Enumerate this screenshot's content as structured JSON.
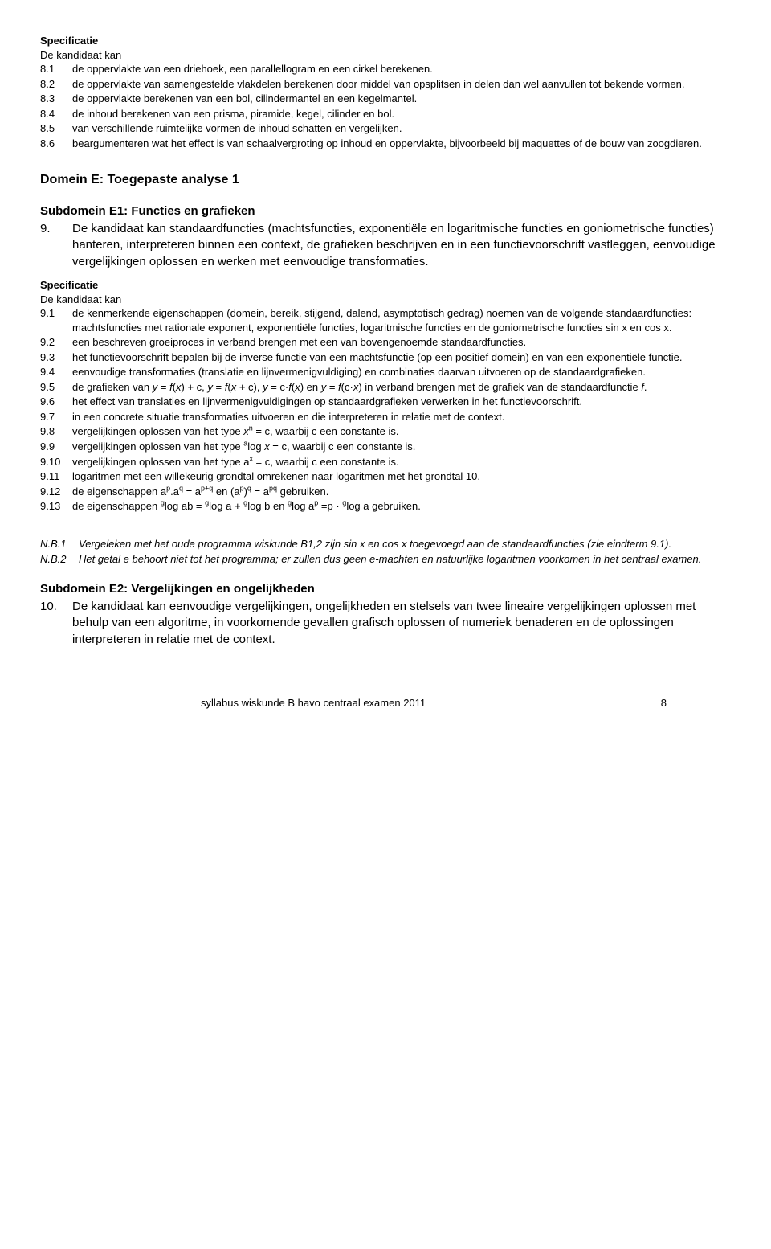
{
  "spec8": {
    "heading": "Specificatie",
    "subheading": "De kandidaat kan",
    "items": [
      {
        "n": "8.1",
        "t": "de oppervlakte van een driehoek, een parallellogram en een cirkel berekenen."
      },
      {
        "n": "8.2",
        "t": "de oppervlakte van samengestelde vlakdelen berekenen door middel van opsplitsen in delen dan wel aanvullen tot bekende vormen."
      },
      {
        "n": "8.3",
        "t": "de oppervlakte berekenen van een bol, cilindermantel en een kegelmantel."
      },
      {
        "n": "8.4",
        "t": "de inhoud berekenen van een prisma, piramide, kegel, cilinder en bol."
      },
      {
        "n": "8.5",
        "t": "van verschillende ruimtelijke vormen de inhoud schatten en vergelijken."
      },
      {
        "n": "8.6",
        "t": "beargumenteren wat het effect is van schaalvergroting op inhoud en oppervlakte, bijvoorbeeld bij maquettes of de bouw van zoogdieren."
      }
    ]
  },
  "domainE": {
    "title": "Domein E: Toegepaste analyse 1"
  },
  "subE1": {
    "title": "Subdomein E1: Functies en grafieken",
    "mainNum": "9.",
    "mainText": "De kandidaat kan standaardfuncties (machtsfuncties, exponentiële en logaritmische functies en goniometrische functies) hanteren, interpreteren binnen een context, de grafieken beschrijven en in een functievoorschrift vastleggen, eenvoudige vergelijkingen oplossen en werken met eenvoudige transformaties."
  },
  "spec9": {
    "heading": "Specificatie",
    "subheading": "De kandidaat kan",
    "items": [
      {
        "n": "9.1",
        "t": "de kenmerkende eigenschappen (domein, bereik, stijgend, dalend, asymptotisch gedrag) noemen van de volgende standaardfuncties: machtsfuncties met rationale exponent, exponentiële functies, logaritmische functies en de goniometrische functies sin x en cos x."
      },
      {
        "n": "9.2",
        "t": "een beschreven groeiproces in verband brengen met een van bovengenoemde standaardfuncties."
      },
      {
        "n": "9.3",
        "t": "het functievoorschrift bepalen bij de inverse functie van een machtsfunctie (op een positief domein) en van een exponentiële functie."
      },
      {
        "n": "9.4",
        "t": "eenvoudige transformaties (translatie en lijnvermenigvuldiging) en combinaties daarvan uitvoeren op de standaardgrafieken."
      },
      {
        "n": "9.5",
        "html": "de grafieken van <i>y</i> = <i>f</i>(<i>x</i>) + c, <i>y</i> = <i>f</i>(<i>x</i> + c), <i>y</i> = c·<i>f</i>(<i>x</i>) en <i>y</i> = <i>f</i>(c·<i>x</i>) in verband brengen met de grafiek van de standaardfunctie <i>f</i>."
      },
      {
        "n": "9.6",
        "t": "het effect van translaties en lijnvermenigvuldigingen op standaardgrafieken verwerken in het functievoorschrift."
      },
      {
        "n": "9.7",
        "t": "in een concrete situatie transformaties uitvoeren en die interpreteren in relatie met de context."
      },
      {
        "n": "9.8",
        "html": "vergelijkingen oplossen van het type <i>x</i><sup>n</sup> = c, waarbij c een constante is."
      },
      {
        "n": "9.9",
        "html": "vergelijkingen oplossen van het type <sup>a</sup>log <i>x</i> = c, waarbij c een constante is."
      },
      {
        "n": "9.10",
        "html": "vergelijkingen oplossen van het type a<sup>x</sup> = c, waarbij c een constante is."
      },
      {
        "n": "9.11",
        "t": "logaritmen met een willekeurig grondtal omrekenen naar logaritmen met het grondtal 10."
      },
      {
        "n": "9.12",
        "html": "de eigenschappen a<sup>p</sup>.a<sup>q</sup> = a<sup>p+q</sup> en (a<sup>p</sup>)<sup>q</sup> = a<sup>pq</sup>  gebruiken."
      },
      {
        "n": "9.13",
        "html": "de eigenschappen <sup>g</sup>log ab = <sup>g</sup>log a + <sup>g</sup>log b en <sup>g</sup>log a<sup>p</sup> =p · <sup>g</sup>log a gebruiken."
      }
    ]
  },
  "notes": [
    {
      "label": "N.B.1",
      "t": "Vergeleken met het oude programma wiskunde B1,2 zijn sin x en cos x  toegevoegd aan de standaardfuncties (zie eindterm 9.1)."
    },
    {
      "label": "N.B.2",
      "t": "Het getal e behoort niet tot het programma; er zullen dus geen e-machten en natuurlijke logaritmen voorkomen in het centraal examen."
    }
  ],
  "subE2": {
    "title": "Subdomein E2: Vergelijkingen en ongelijkheden",
    "mainNum": "10.",
    "mainText": "De kandidaat kan eenvoudige vergelijkingen, ongelijkheden en stelsels van twee lineaire vergelijkingen oplossen met behulp van een algoritme, in voorkomende gevallen grafisch oplossen of numeriek benaderen en de oplossingen interpreteren in relatie met de context."
  },
  "footer": {
    "text": "syllabus wiskunde B havo centraal examen 2011",
    "page": "8"
  }
}
